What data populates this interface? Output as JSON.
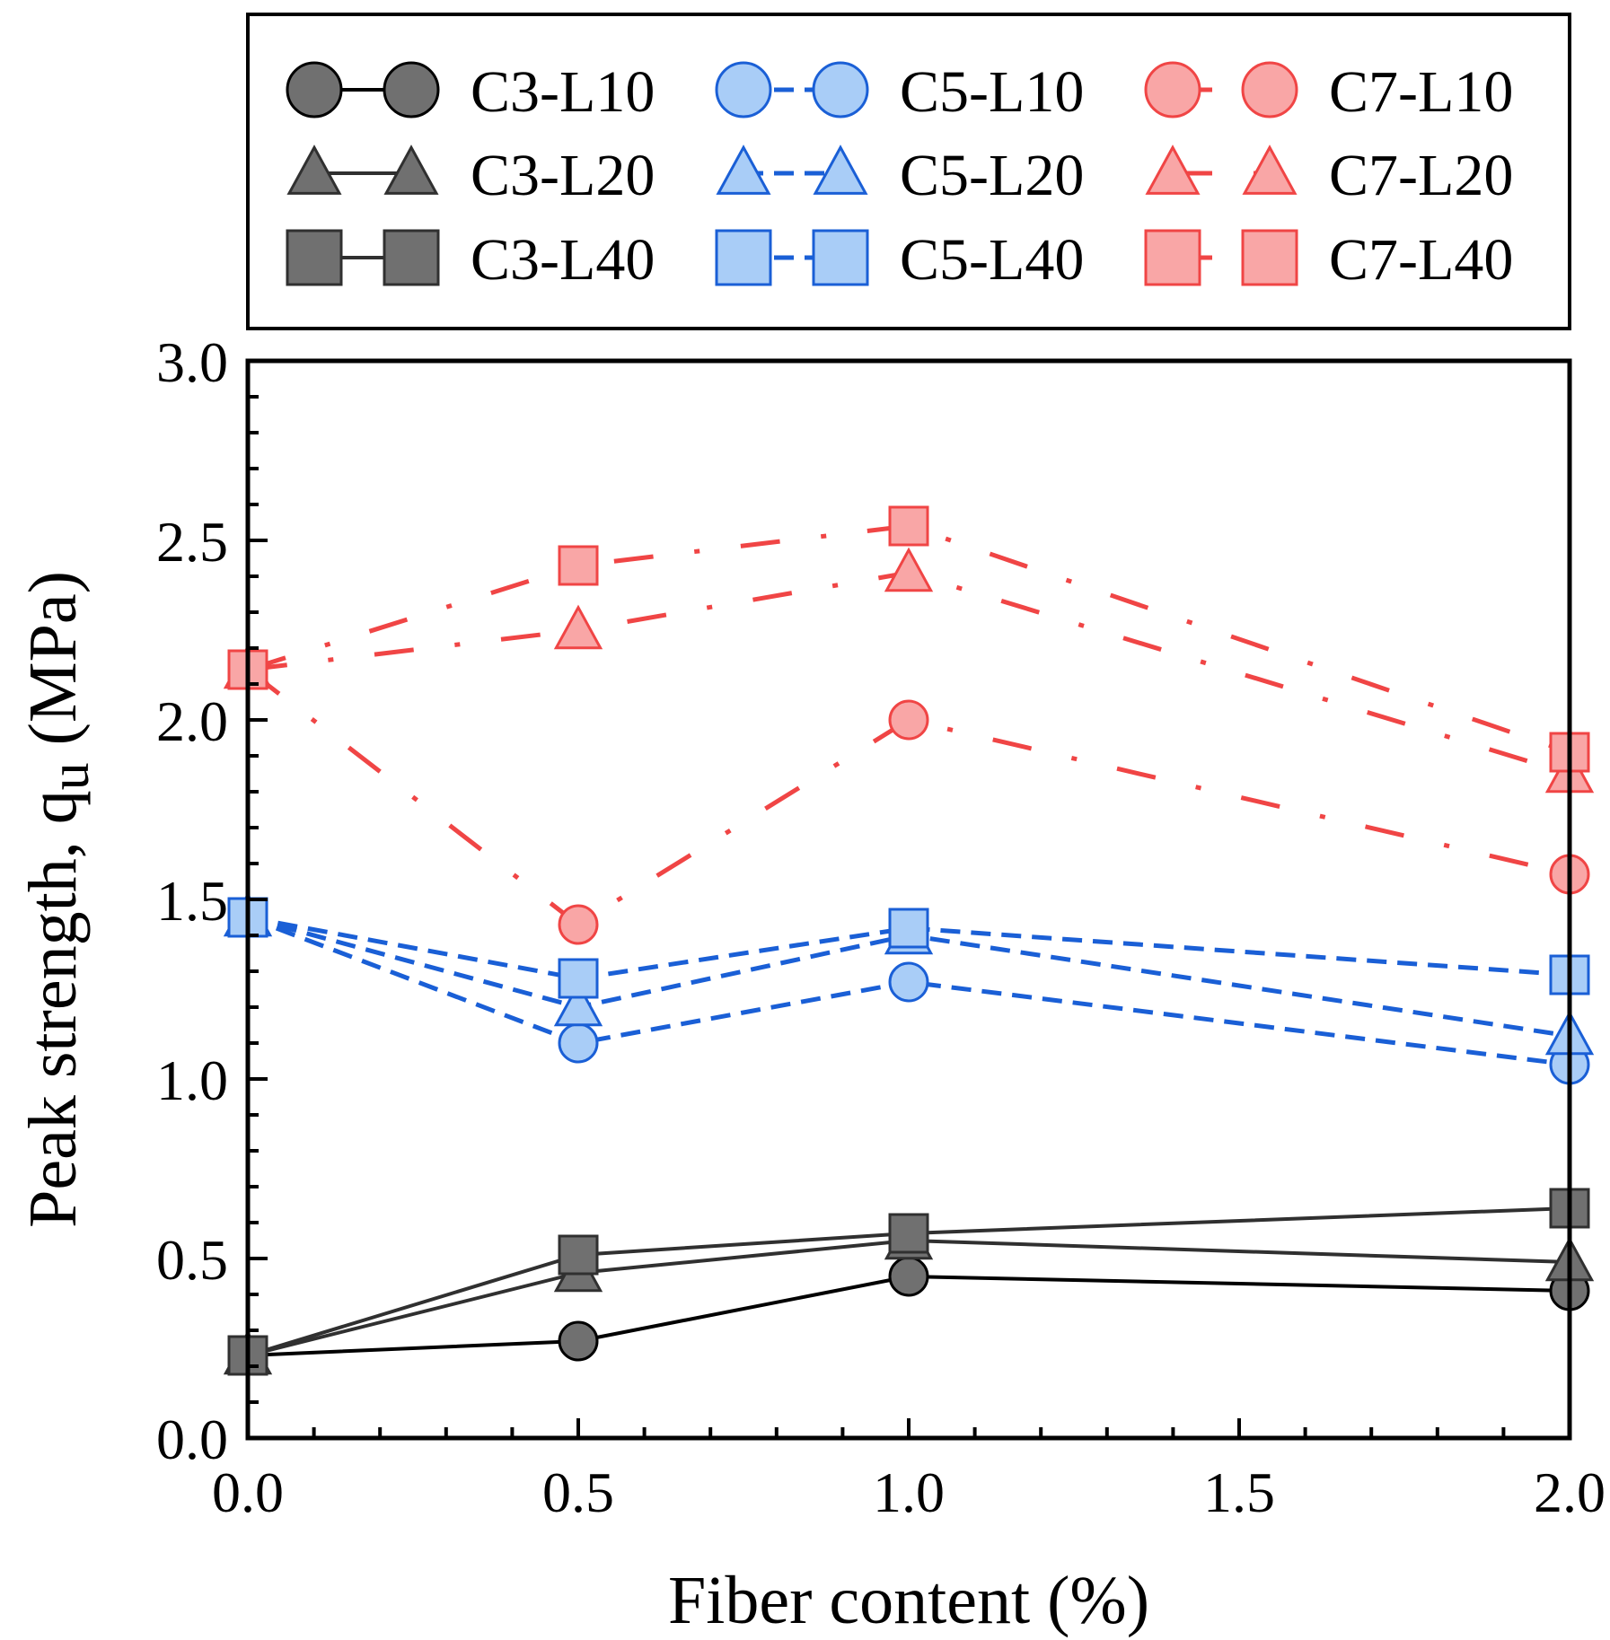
{
  "chart_data": {
    "type": "line",
    "xlabel": "Fiber content (%)",
    "ylabel_main": "Peak strength, q",
    "ylabel_sub": "u",
    "ylabel_unit": " (MPa)",
    "xlim": [
      0,
      2.0
    ],
    "ylim": [
      0,
      3.0
    ],
    "x_major_ticks": [
      0,
      0.5,
      1.0,
      1.5,
      2.0
    ],
    "x_tick_labels": [
      "0.0",
      "0.5",
      "1.0",
      "1.5",
      "2.0"
    ],
    "y_major_ticks": [
      0,
      0.5,
      1.0,
      1.5,
      2.0,
      2.5,
      3.0
    ],
    "y_tick_labels": [
      "0.0",
      "0.5",
      "1.0",
      "1.5",
      "2.0",
      "2.5",
      "3.0"
    ],
    "x_minor_step": 0.1,
    "y_minor_step": 0.1,
    "legend_position": "top",
    "x": [
      0,
      0.5,
      1.0,
      2.0
    ],
    "series": [
      {
        "name": "C3-L10",
        "values": [
          0.23,
          0.27,
          0.45,
          0.41
        ],
        "color": "#000000",
        "marker": "circle",
        "line": "solid",
        "fill": "#707070"
      },
      {
        "name": "C5-L10",
        "values": [
          1.45,
          1.1,
          1.27,
          1.04
        ],
        "color": "#1a5fd6",
        "marker": "circle",
        "line": "dash",
        "fill": "#a9cdf7"
      },
      {
        "name": "C7-L10",
        "values": [
          2.14,
          1.43,
          2.0,
          1.57
        ],
        "color": "#f04545",
        "marker": "circle",
        "line": "dashdot",
        "fill": "#f9a6a6"
      },
      {
        "name": "C3-L20",
        "values": [
          0.23,
          0.46,
          0.55,
          0.49
        ],
        "color": "#303030",
        "marker": "triangle",
        "line": "solid",
        "fill": "#707070"
      },
      {
        "name": "C5-L20",
        "values": [
          1.45,
          1.2,
          1.4,
          1.12
        ],
        "color": "#1a5fd6",
        "marker": "triangle",
        "line": "dash",
        "fill": "#a9cdf7"
      },
      {
        "name": "C7-L20",
        "values": [
          2.14,
          2.25,
          2.41,
          1.85
        ],
        "color": "#f04545",
        "marker": "triangle",
        "line": "dashdot",
        "fill": "#f9a6a6"
      },
      {
        "name": "C3-L40",
        "values": [
          0.23,
          0.51,
          0.57,
          0.64
        ],
        "color": "#303030",
        "marker": "square",
        "line": "solid",
        "fill": "#707070"
      },
      {
        "name": "C5-L40",
        "values": [
          1.45,
          1.28,
          1.42,
          1.29
        ],
        "color": "#1a5fd6",
        "marker": "square",
        "line": "dash",
        "fill": "#a9cdf7"
      },
      {
        "name": "C7-L40",
        "values": [
          2.14,
          2.43,
          2.54,
          1.91
        ],
        "color": "#f04545",
        "marker": "square",
        "line": "dashdot",
        "fill": "#f9a6a6"
      }
    ]
  }
}
